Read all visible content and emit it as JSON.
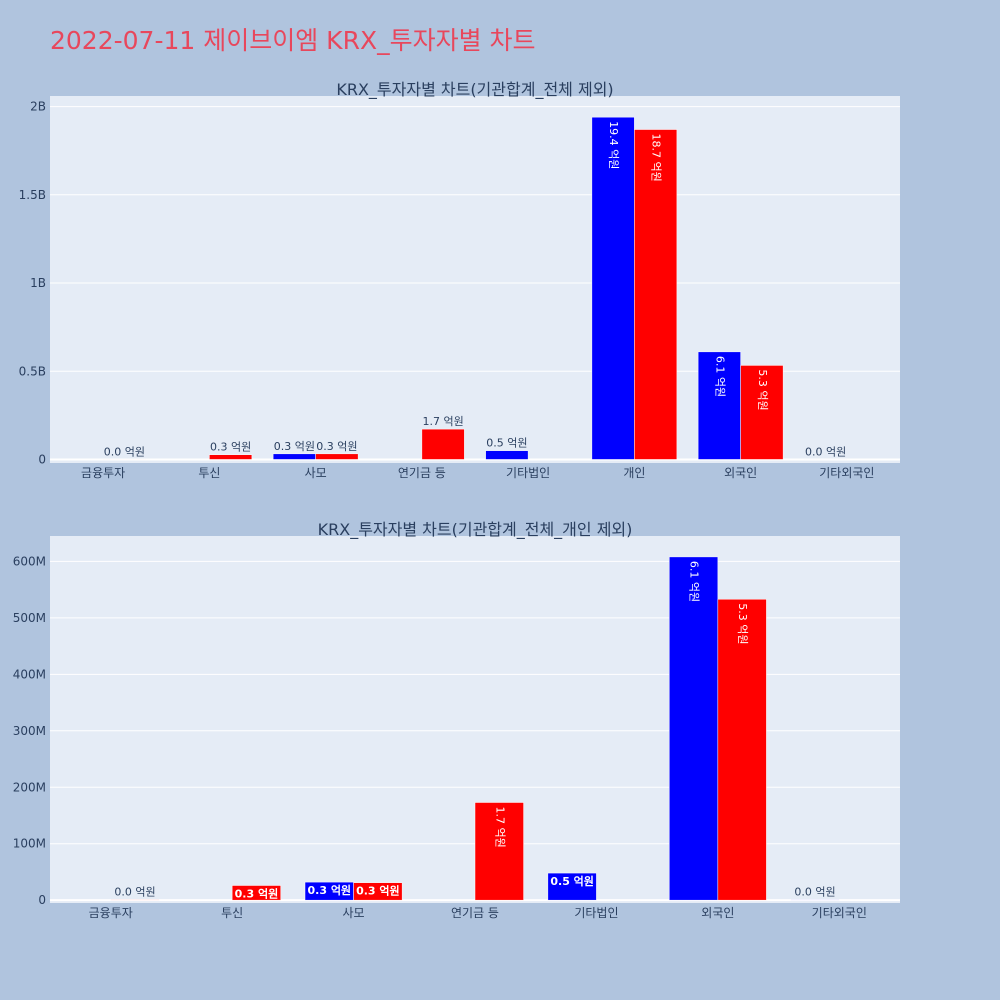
{
  "page_title": "2022-07-11 제이브이엠 KRX_투자자별 차트",
  "colors": {
    "page_bg": "#b0c4de",
    "plot_bg": "#e5ecf6",
    "title": "#e8475c",
    "sell": "#0000ff",
    "buy": "#ff0000",
    "text": "#2a3f5f"
  },
  "chart_data": [
    {
      "type": "bar",
      "title": "KRX_투자자별 차트(기관합계_전체 제외)",
      "categories": [
        "금융투자",
        "투신",
        "사모",
        "연기금 등",
        "기타법인",
        "개인",
        "외국인",
        "기타외국인"
      ],
      "series": [
        {
          "color": "#0000ff",
          "values": [
            0,
            0,
            32000000,
            0,
            50000000,
            1940000000,
            610000000,
            1000000
          ],
          "labels": [
            "",
            "",
            "0.3 억원",
            "",
            "0.5 억원",
            "19.4 억원",
            "6.1 억원",
            "0.0 억원"
          ]
        },
        {
          "color": "#ff0000",
          "values": [
            1000000,
            27000000,
            32000000,
            172000000,
            0,
            1870000000,
            533000000,
            0
          ],
          "labels": [
            "0.0 억원",
            "0.3 억원",
            "0.3 억원",
            "1.7 억원",
            "",
            "18.7 억원",
            "5.3 억원",
            ""
          ]
        }
      ],
      "yticks": [
        0,
        500000000,
        1000000000,
        1500000000,
        2000000000
      ],
      "ytick_labels": [
        "0",
        "0.5B",
        "1B",
        "1.5B",
        "2B"
      ],
      "ylim": [
        -20000000,
        2060000000
      ],
      "grid": true
    },
    {
      "type": "bar",
      "title": "KRX_투자자별 차트(기관합계_전체_개인 제외)",
      "categories": [
        "금융투자",
        "투신",
        "사모",
        "연기금 등",
        "기타법인",
        "외국인",
        "기타외국인"
      ],
      "series": [
        {
          "color": "#0000ff",
          "values": [
            0,
            0,
            32000000,
            0,
            48000000,
            608000000,
            1000000
          ],
          "labels": [
            "",
            "",
            "0.3 억원",
            "",
            "0.5 억원",
            "6.1 억원",
            "0.0 억원"
          ]
        },
        {
          "color": "#ff0000",
          "values": [
            1000000,
            26000000,
            31000000,
            173000000,
            0,
            533000000,
            0
          ],
          "labels": [
            "0.0 억원",
            "0.3 억원",
            "0.3 억원",
            "1.7 억원",
            "",
            "5.3 억원",
            ""
          ]
        }
      ],
      "yticks": [
        0,
        100000000,
        200000000,
        300000000,
        400000000,
        500000000,
        600000000
      ],
      "ytick_labels": [
        "0",
        "100M",
        "200M",
        "300M",
        "400M",
        "500M",
        "600M"
      ],
      "ylim": [
        -5000000,
        645000000
      ],
      "grid": true
    }
  ]
}
